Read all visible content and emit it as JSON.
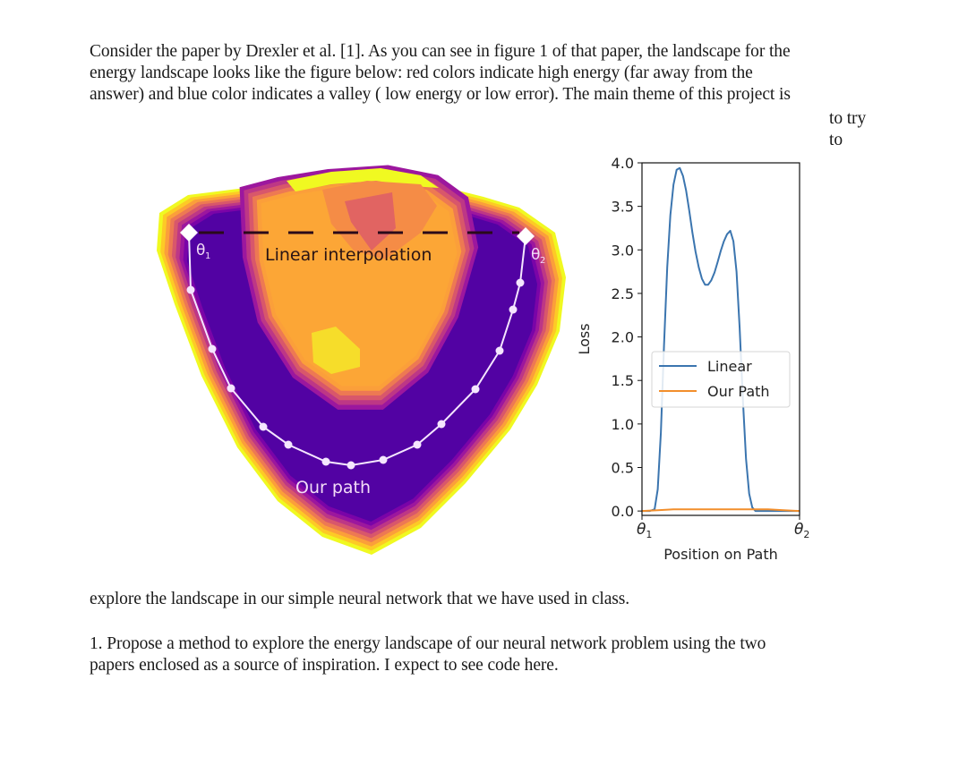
{
  "document": {
    "paragraph1_lines": [
      "Consider the paper by Drexler et al. [1].  As you can see in figure 1 of that paper, the landscape for the",
      "energy landscape looks like the figure below: red colors indicate high energy (far away from the",
      "answer) and blue color indicates a valley ( low energy or low error).  The main theme of this project is"
    ],
    "right_fragment_1": "to try",
    "right_fragment_2": "to",
    "paragraph2": "explore the landscape in our simple neural network that we have used in class.",
    "paragraph3_lines": [
      "1. Propose a method to explore the energy landscape of our neural network problem using the two",
      "papers enclosed as a source of inspiration. I expect to see code here."
    ]
  },
  "landscape_figure": {
    "linear_label": "Linear interpolation",
    "path_label": "Our path",
    "theta1_label": "θ",
    "theta1_sub": "1",
    "theta2_label": "θ",
    "theta2_sub": "2",
    "path_point_count": 14,
    "colors": {
      "valley": "#5202a3",
      "band1": "#7a04a8",
      "band2": "#9c179e",
      "band3": "#bd3786",
      "band4": "#d8576b",
      "band5": "#ed7953",
      "band6": "#fb9f3a",
      "band7": "#fdca26",
      "band8": "#f0f921",
      "peak": "#e16462",
      "high": "#f58c46",
      "mid": "#fca636",
      "low_island": "#f6dd2a",
      "path": "#f5e6ff",
      "dash": "#2a0a1a"
    }
  },
  "chart_data": {
    "type": "line",
    "title": "",
    "xlabel": "Position on Path",
    "ylabel": "Loss",
    "x_tick_labels": [
      "θ1",
      "θ2"
    ],
    "y_ticks": [
      0.0,
      0.5,
      1.0,
      1.5,
      2.0,
      2.5,
      3.0,
      3.5,
      4.0
    ],
    "y_tick_labels": [
      "0.0",
      "0.5",
      "1.0",
      "1.5",
      "2.0",
      "2.5",
      "3.0",
      "3.5",
      "4.0"
    ],
    "xlim": [
      0,
      1
    ],
    "ylim": [
      -0.05,
      4.0
    ],
    "grid": false,
    "legend_position": "center-right",
    "series": [
      {
        "name": "Linear",
        "color": "#3b75af",
        "x": [
          0,
          0.05,
          0.08,
          0.1,
          0.12,
          0.14,
          0.16,
          0.18,
          0.2,
          0.22,
          0.24,
          0.26,
          0.28,
          0.3,
          0.32,
          0.34,
          0.36,
          0.38,
          0.4,
          0.42,
          0.44,
          0.46,
          0.48,
          0.5,
          0.52,
          0.54,
          0.56,
          0.58,
          0.6,
          0.62,
          0.64,
          0.66,
          0.68,
          0.7,
          0.72,
          0.74,
          0.76,
          0.78,
          0.8,
          0.82,
          0.84,
          0.86,
          0.88,
          0.9,
          0.92,
          0.95,
          1.0
        ],
        "values": [
          0,
          0,
          0.02,
          0.25,
          0.9,
          1.9,
          2.8,
          3.4,
          3.75,
          3.92,
          3.94,
          3.85,
          3.68,
          3.45,
          3.2,
          2.98,
          2.8,
          2.67,
          2.6,
          2.6,
          2.65,
          2.74,
          2.86,
          2.99,
          3.1,
          3.18,
          3.22,
          3.1,
          2.75,
          2.1,
          1.3,
          0.6,
          0.2,
          0.04,
          0,
          0,
          0,
          0,
          0,
          0,
          0,
          0,
          0,
          0,
          0,
          0,
          0
        ]
      },
      {
        "name": "Our Path",
        "color": "#f28e2b",
        "x": [
          0,
          0.1,
          0.2,
          0.3,
          0.4,
          0.5,
          0.6,
          0.7,
          0.8,
          0.9,
          1.0
        ],
        "values": [
          0.0,
          0.01,
          0.02,
          0.02,
          0.02,
          0.02,
          0.02,
          0.02,
          0.02,
          0.01,
          0.0
        ]
      }
    ]
  }
}
